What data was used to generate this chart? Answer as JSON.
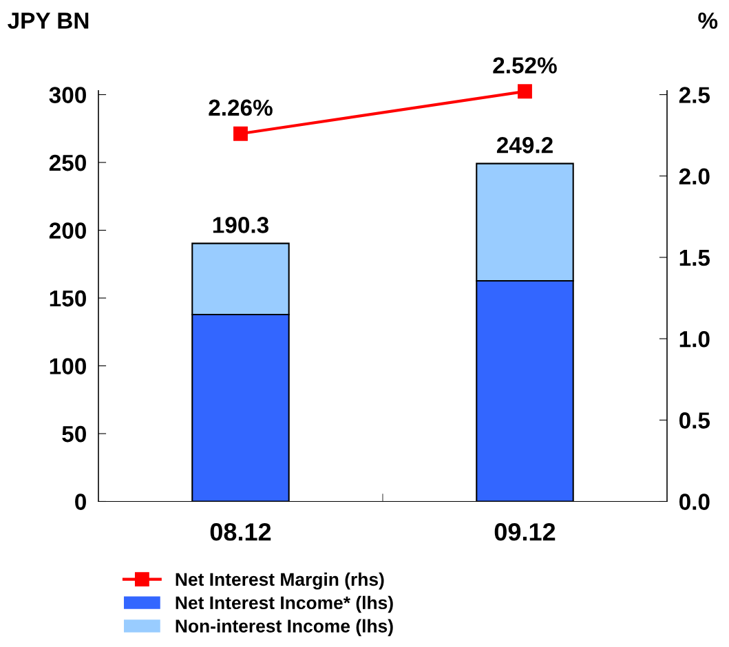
{
  "chart_data": {
    "type": "bar",
    "stacked": true,
    "ylabel": "JPY BN",
    "y2label": "%",
    "categories": [
      "08.12",
      "09.12"
    ],
    "series": [
      {
        "name": "Net Interest Income* (lhs)",
        "color": "#3366ff",
        "values": [
          137.8,
          162.7
        ]
      },
      {
        "name": "Non-interest Income (lhs)",
        "color": "#99ccff",
        "values": [
          52.5,
          86.5
        ]
      },
      {
        "name": "Net Interest Margin (rhs)",
        "type": "line",
        "axis": "y2",
        "color": "#ff0000",
        "marker": "square",
        "values": [
          2.26,
          2.52
        ],
        "value_labels": [
          "2.26%",
          "2.52%"
        ]
      }
    ],
    "totals": [
      "190.3",
      "249.2"
    ],
    "ylim": [
      0,
      303
    ],
    "yticks": [
      0,
      50,
      100,
      150,
      200,
      250,
      300
    ],
    "y2lim": [
      0,
      2.525
    ],
    "y2ticks": [
      {
        "value": 0,
        "label": "0.0"
      },
      {
        "value": 0.5,
        "label": "0.5"
      },
      {
        "value": 1,
        "label": "1.0"
      },
      {
        "value": 1.5,
        "label": "1.5"
      },
      {
        "value": 2,
        "label": "2.0"
      },
      {
        "value": 2.5,
        "label": "2.5"
      }
    ],
    "grid": false,
    "legend": "bottom"
  }
}
